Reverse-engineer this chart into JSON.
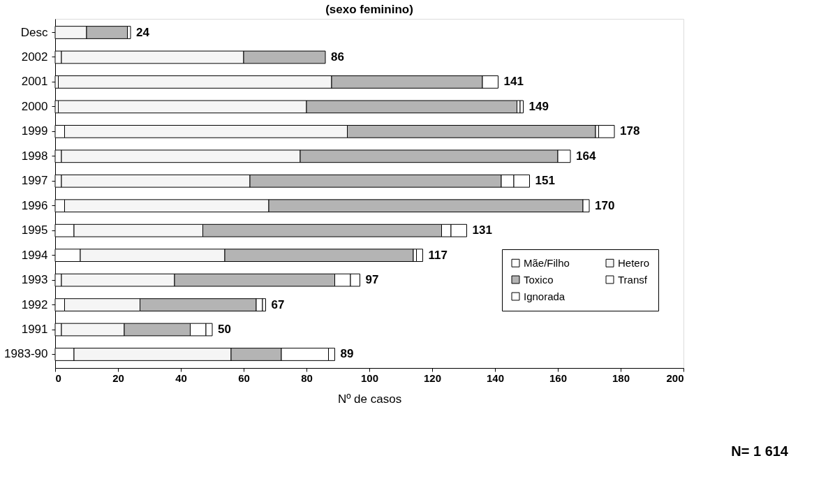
{
  "chart_data": {
    "type": "bar",
    "orientation": "horizontal",
    "stacked": true,
    "title": "(sexo feminino)",
    "xlabel": "Nº de casos",
    "categories": [
      "Desc",
      "2002",
      "2001",
      "2000",
      "1999",
      "1998",
      "1997",
      "1996",
      "1995",
      "1994",
      "1993",
      "1992",
      "1991",
      "1983-90"
    ],
    "series": [
      {
        "name": "Mãe/Filho",
        "color": "#ffffff",
        "values": [
          0,
          2,
          1,
          1,
          3,
          2,
          2,
          3,
          6,
          8,
          2,
          3,
          2,
          6
        ]
      },
      {
        "name": "Hetero",
        "color": "#f5f5f5",
        "values": [
          10,
          58,
          87,
          79,
          90,
          76,
          60,
          65,
          41,
          46,
          36,
          24,
          20,
          50
        ]
      },
      {
        "name": "Toxico",
        "color": "#b4b4b4",
        "values": [
          13,
          26,
          48,
          67,
          79,
          82,
          80,
          100,
          76,
          60,
          51,
          37,
          21,
          16
        ]
      },
      {
        "name": "Transf",
        "color": "#ffffff",
        "values": [
          0,
          0,
          0,
          1,
          1,
          0,
          4,
          0,
          3,
          1,
          5,
          2,
          5,
          15
        ]
      },
      {
        "name": "Ignorada",
        "color": "#ffffff",
        "values": [
          1,
          0,
          5,
          1,
          5,
          4,
          5,
          2,
          5,
          2,
          3,
          1,
          2,
          2
        ]
      }
    ],
    "totals": [
      "24",
      "86",
      "141",
      "149",
      "178",
      "164",
      "151",
      "170",
      "131",
      "117",
      "97",
      "67",
      "50",
      "89"
    ],
    "xlim": [
      0,
      200
    ],
    "xticks": [
      0,
      20,
      40,
      60,
      80,
      100,
      120,
      140,
      160,
      180,
      200
    ],
    "grid": false,
    "legend": "bottom right",
    "annotations": [
      "N= 1 614"
    ]
  }
}
